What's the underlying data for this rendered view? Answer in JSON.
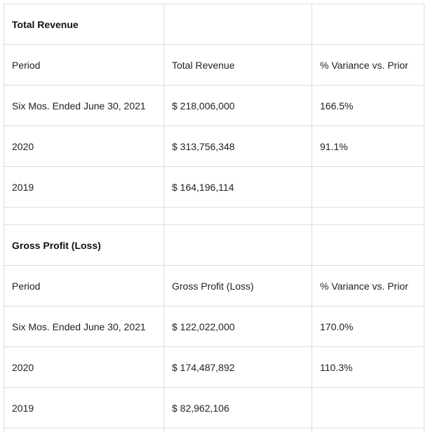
{
  "revenue_section": {
    "title": "Total Revenue",
    "header": {
      "period": "Period",
      "metric": "Total Revenue",
      "variance": "% Variance vs. Prior"
    },
    "rows": [
      {
        "period": "Six Mos. Ended June 30, 2021",
        "value": "$ 218,006,000",
        "variance": "166.5%"
      },
      {
        "period": "2020",
        "value": "$ 313,756,348",
        "variance": "91.1%"
      },
      {
        "period": "2019",
        "value": "$ 164,196,114",
        "variance": ""
      }
    ]
  },
  "gross_profit_section": {
    "title": "Gross Profit (Loss)",
    "header": {
      "period": "Period",
      "metric": "Gross Profit (Loss)",
      "variance": "% Variance vs. Prior"
    },
    "rows": [
      {
        "period": "Six Mos. Ended June 30, 2021",
        "value": "$ 122,022,000",
        "variance": "170.0%"
      },
      {
        "period": "2020",
        "value": "$ 174,487,892",
        "variance": "110.3%"
      },
      {
        "period": "2019",
        "value": "$ 82,962,106",
        "variance": ""
      }
    ]
  }
}
